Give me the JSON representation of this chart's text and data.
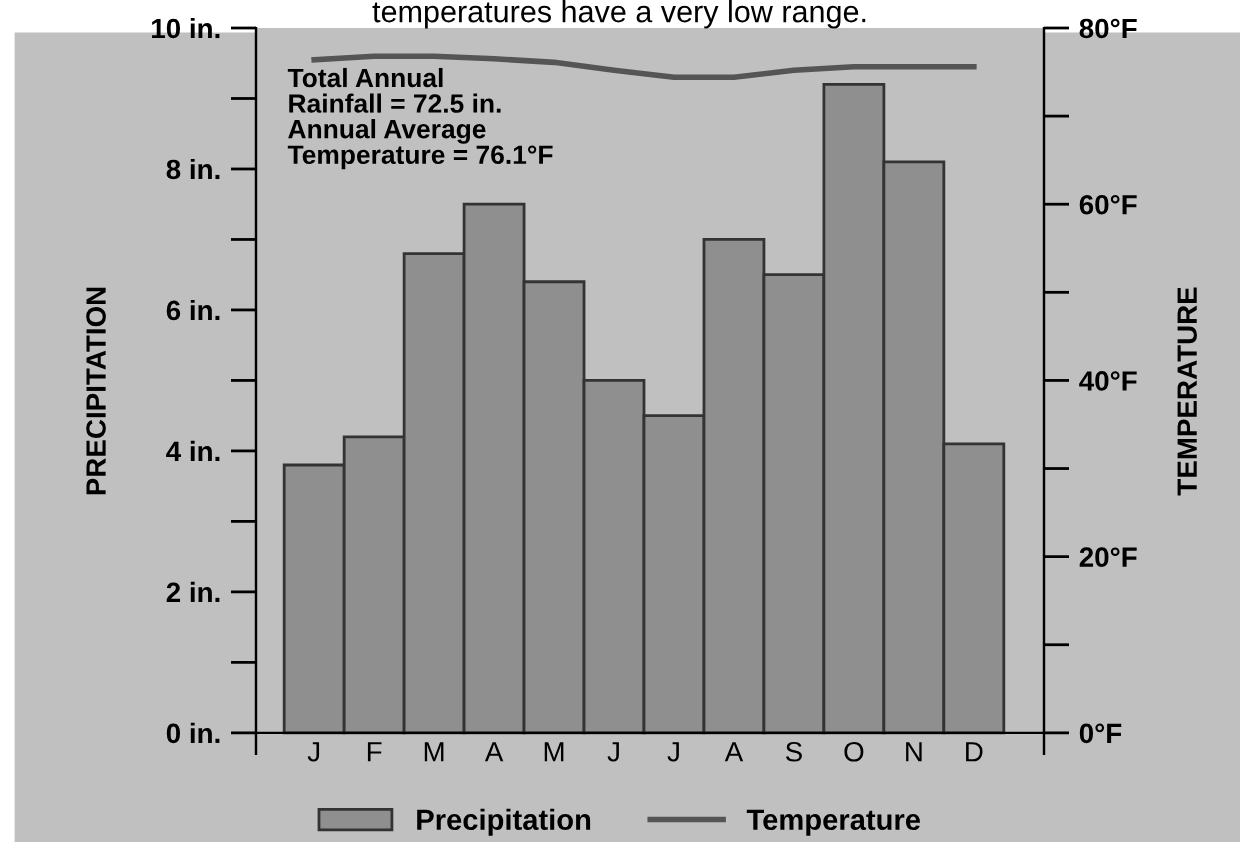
{
  "chart_data": {
    "type": "bar",
    "categories": [
      "J",
      "F",
      "M",
      "A",
      "M",
      "J",
      "J",
      "A",
      "S",
      "O",
      "N",
      "D"
    ],
    "series": [
      {
        "name": "Precipitation",
        "color": "#8f8f8f",
        "values": [
          3.8,
          4.2,
          6.8,
          7.5,
          6.4,
          5.0,
          4.5,
          7.0,
          6.5,
          9.2,
          8.1,
          4.1
        ]
      },
      {
        "name": "Temperature",
        "type": "line",
        "axis": "y2",
        "color": "#555555",
        "values": [
          76.4,
          76.8,
          76.8,
          76.5,
          76.1,
          75.2,
          74.4,
          74.4,
          75.2,
          75.6,
          75.6,
          75.6
        ]
      }
    ],
    "ylabel": "PRECIPITATION",
    "y2label": "TEMPERATURE",
    "ylim": [
      -0.3,
      10
    ],
    "yticks": [
      {
        "value": 0,
        "label": "0 in."
      },
      {
        "value": 1,
        "label": null
      },
      {
        "value": 2,
        "label": "2 in."
      },
      {
        "value": 3,
        "label": null
      },
      {
        "value": 4,
        "label": "4 in."
      },
      {
        "value": 5,
        "label": null
      },
      {
        "value": 6,
        "label": "6 in."
      },
      {
        "value": 7,
        "label": null
      },
      {
        "value": 8,
        "label": "8 in."
      },
      {
        "value": 9,
        "label": null
      },
      {
        "value": 10,
        "label": "10 in."
      }
    ],
    "y2lim": [
      -2.4,
      80
    ],
    "y2ticks": [
      {
        "value": 0,
        "label": "0°F"
      },
      {
        "value": 10,
        "label": null
      },
      {
        "value": 20,
        "label": "20°F"
      },
      {
        "value": 30,
        "label": null
      },
      {
        "value": 40,
        "label": "40°F"
      },
      {
        "value": 50,
        "label": null
      },
      {
        "value": 60,
        "label": "60°F"
      },
      {
        "value": 70,
        "label": null
      },
      {
        "value": 80,
        "label": "80°F"
      }
    ],
    "annotations": [
      "Total Annual\nRainfall = 72.5 in.\nAnnual Average\nTemperature = 76.1°F",
      "temperatures have a very low range."
    ],
    "legend": "bottom"
  }
}
